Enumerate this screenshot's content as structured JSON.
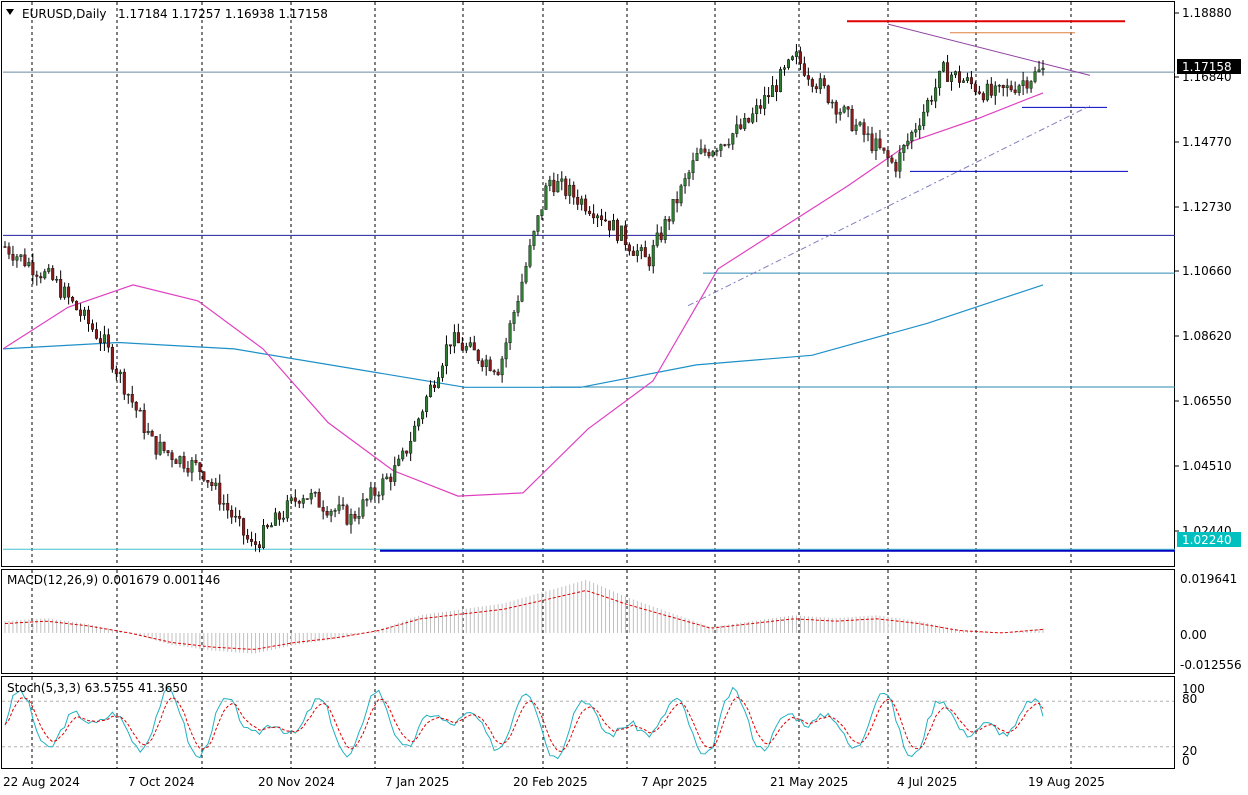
{
  "header": {
    "symbol": "EURUSD,Daily",
    "ohlc": "1.17184 1.17257 1.16938 1.17158"
  },
  "price_axis": {
    "ticks": [
      "1.18880",
      "1.16840",
      "1.14770",
      "1.12730",
      "1.10660",
      "1.08620",
      "1.06550",
      "1.04510",
      "1.02440"
    ],
    "current_price": "1.17158",
    "marked_level": "1.02240"
  },
  "macd": {
    "label": "MACD(12,26,9) 0.001679 0.001146",
    "ticks": [
      "0.019641",
      "0.00",
      "-0.012556"
    ]
  },
  "stoch": {
    "label": "Stoch(5,3,3) 63.5755 41.3650",
    "ticks": [
      "100",
      "80",
      "20",
      "0"
    ]
  },
  "date_labels": [
    "22 Aug 2024",
    "7 Oct 2024",
    "20 Nov 2024",
    "7 Jan 2025",
    "20 Feb 2025",
    "7 Apr 2025",
    "21 May 2025",
    "4 Jul 2025",
    "19 Aug 2025"
  ],
  "colors": {
    "bull_candle": "#2e7d32",
    "bear_candle": "#8b1a1a",
    "ma_fast": "#e040c0",
    "ma_slow": "#1e90c8",
    "resistance": "#e00000",
    "support": "#0000c0",
    "axis_highlight": "#00c0c0"
  },
  "chart_data": {
    "type": "candlestick",
    "symbol": "EURUSD",
    "timeframe": "Daily",
    "x": [
      "22 Aug 2024",
      "7 Oct 2024",
      "20 Nov 2024",
      "7 Jan 2025",
      "20 Feb 2025",
      "7 Apr 2025",
      "21 May 2025",
      "4 Jul 2025",
      "19 Aug 2025"
    ],
    "close_path": [
      1.117,
      1.106,
      1.087,
      1.055,
      1.047,
      1.023,
      1.04,
      1.032,
      1.049,
      1.088,
      1.079,
      1.138,
      1.128,
      1.112,
      1.145,
      1.155,
      1.176,
      1.158,
      1.142,
      1.172,
      1.164,
      1.172
    ],
    "ma_fast_path": [
      1.085,
      1.098,
      1.105,
      1.1,
      1.085,
      1.062,
      1.047,
      1.039,
      1.04,
      1.06,
      1.075,
      1.11,
      1.123,
      1.136,
      1.15,
      1.157,
      1.165
    ],
    "ma_slow_path": [
      1.085,
      1.087,
      1.085,
      1.079,
      1.073,
      1.073,
      1.08,
      1.083,
      1.093,
      1.105
    ],
    "horizontal_levels": [
      1.1874,
      1.1838,
      1.1715,
      1.1605,
      1.1405,
      1.1205,
      1.1087,
      1.0731,
      1.0224,
      1.0219
    ],
    "ylim": [
      1.0184,
      1.1928
    ],
    "macd": {
      "value": 0.001679,
      "signal": 0.001146,
      "ylim": [
        -0.012556,
        0.019641
      ]
    },
    "stoch": {
      "k": 63.5755,
      "d": 41.365,
      "ylim": [
        0,
        100
      ],
      "levels": [
        20,
        80
      ]
    }
  }
}
